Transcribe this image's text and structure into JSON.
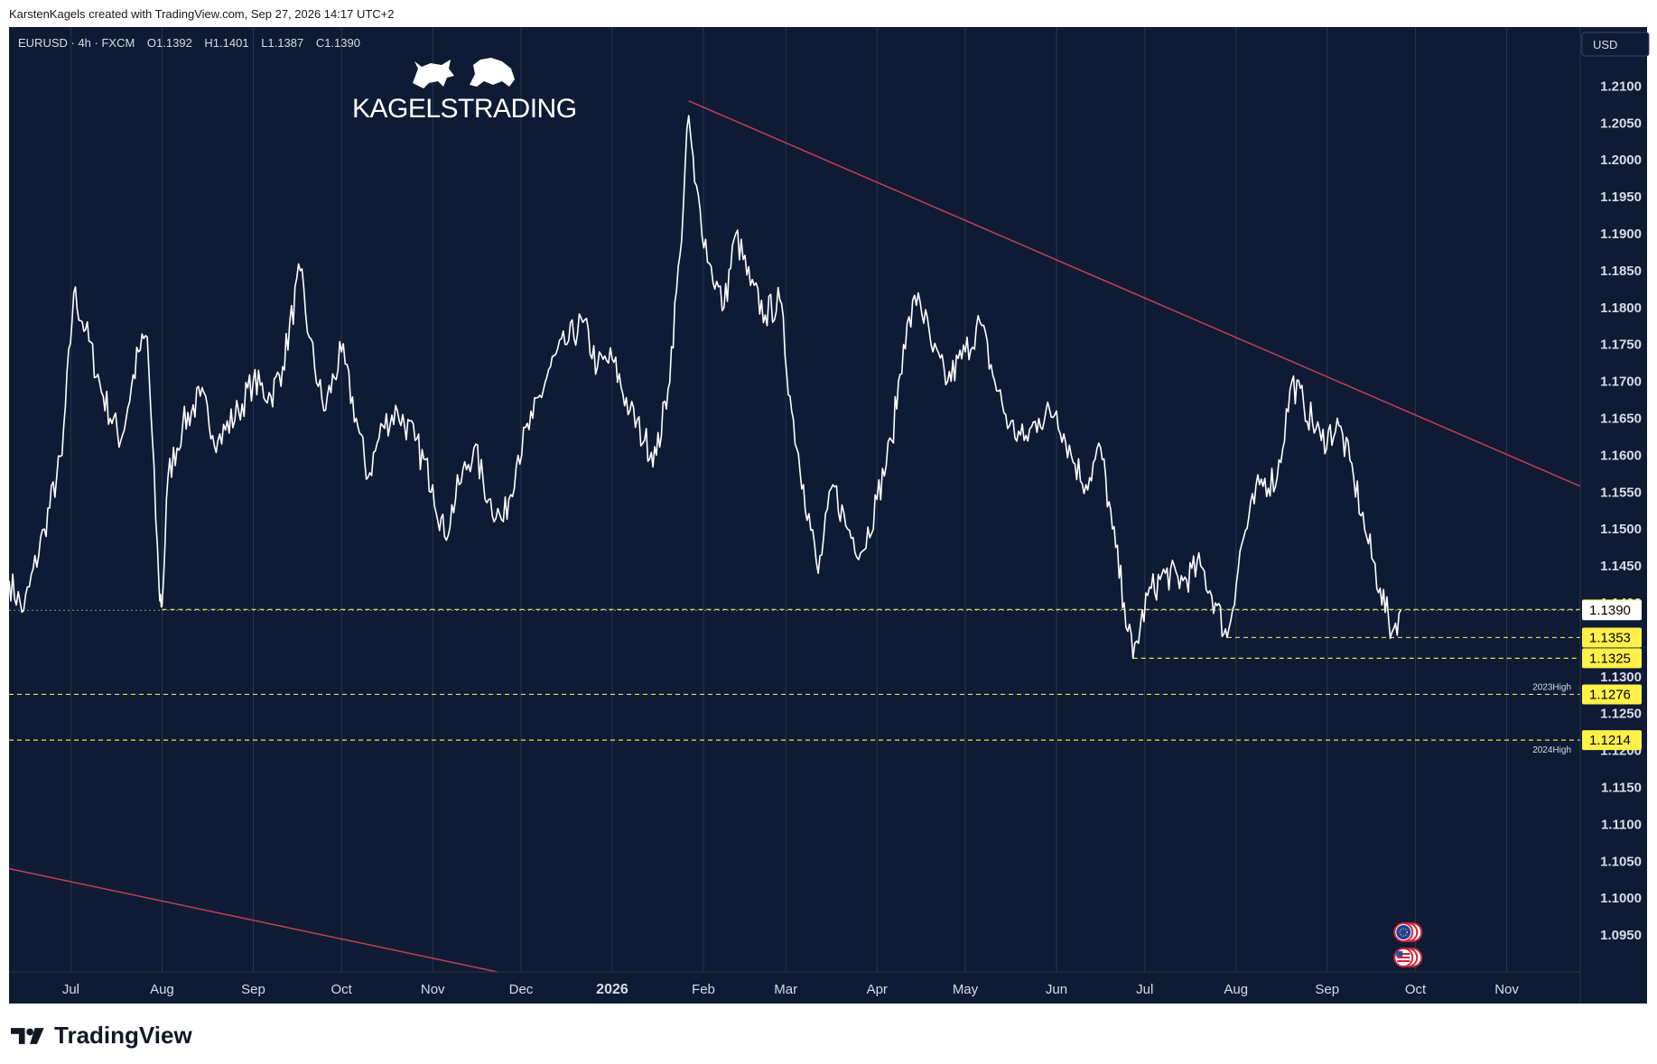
{
  "header": {
    "credit": "KarstenKagels created with TradingView.com, Sep 27, 2026 14:17 UTC+2"
  },
  "legend": {
    "symbol": "EURUSD · 4h · FXCM",
    "open": "O1.1392",
    "high": "H1.1401",
    "low": "L1.1387",
    "close": "C1.1390"
  },
  "brand": {
    "name": "KAGELSTRADING"
  },
  "currency_button": "USD",
  "footer": {
    "logo_text": "TradingView"
  },
  "colors": {
    "background": "#0f1b34",
    "grid": "#2a344d",
    "candles": "#ffffff",
    "trendline": "#c2404f",
    "level_line": "#e8e04a",
    "label_bg": "#fff04a",
    "label_text": "#000000",
    "axis_text": "#d6dce8"
  },
  "chart_data": {
    "type": "line",
    "symbol": "EURUSD",
    "interval": "4h",
    "ylim": [
      1.09,
      1.218
    ],
    "y_ticks": [
      "1.0950",
      "1.1000",
      "1.1050",
      "1.1100",
      "1.1150",
      "1.1200",
      "1.1250",
      "1.1300",
      "1.1350",
      "1.1400",
      "1.1450",
      "1.1500",
      "1.1550",
      "1.1600",
      "1.1650",
      "1.1700",
      "1.1750",
      "1.1800",
      "1.1850",
      "1.1900",
      "1.1950",
      "1.2000",
      "1.2050",
      "1.2100"
    ],
    "x_months": [
      "Jul",
      "Aug",
      "Sep",
      "Oct",
      "Nov",
      "Dec",
      "2026",
      "Feb",
      "Mar",
      "Apr",
      "May",
      "Jun",
      "Jul",
      "Aug",
      "Sep",
      "Oct",
      "Nov"
    ],
    "x_range": [
      "2025-06-10",
      "2026-11-26"
    ],
    "x_tick_dates": [
      "2025-07-01",
      "2025-08-01",
      "2025-09-01",
      "2025-10-01",
      "2025-11-01",
      "2025-12-01",
      "2026-01-01",
      "2026-02-01",
      "2026-03-01",
      "2026-04-01",
      "2026-05-01",
      "2026-06-01",
      "2026-07-01",
      "2026-08-01",
      "2026-09-01",
      "2026-10-01",
      "2026-11-01"
    ],
    "price_path": [
      [
        "2025-06-10",
        1.143
      ],
      [
        "2025-06-15",
        1.139
      ],
      [
        "2025-06-22",
        1.15
      ],
      [
        "2025-06-28",
        1.16
      ],
      [
        "2025-07-02",
        1.182
      ],
      [
        "2025-07-06",
        1.177
      ],
      [
        "2025-07-12",
        1.168
      ],
      [
        "2025-07-18",
        1.162
      ],
      [
        "2025-07-24",
        1.174
      ],
      [
        "2025-07-27",
        1.176
      ],
      [
        "2025-07-31",
        1.142
      ],
      [
        "2025-08-01",
        1.1395
      ],
      [
        "2025-08-03",
        1.157
      ],
      [
        "2025-08-08",
        1.164
      ],
      [
        "2025-08-14",
        1.168
      ],
      [
        "2025-08-20",
        1.162
      ],
      [
        "2025-08-27",
        1.166
      ],
      [
        "2025-09-01",
        1.17
      ],
      [
        "2025-09-07",
        1.168
      ],
      [
        "2025-09-11",
        1.172
      ],
      [
        "2025-09-17",
        1.185
      ],
      [
        "2025-09-20",
        1.176
      ],
      [
        "2025-09-25",
        1.166
      ],
      [
        "2025-10-01",
        1.174
      ],
      [
        "2025-10-06",
        1.165
      ],
      [
        "2025-10-10",
        1.157
      ],
      [
        "2025-10-15",
        1.164
      ],
      [
        "2025-10-20",
        1.166
      ],
      [
        "2025-10-26",
        1.162
      ],
      [
        "2025-11-01",
        1.156
      ],
      [
        "2025-11-05",
        1.149
      ],
      [
        "2025-11-10",
        1.156
      ],
      [
        "2025-11-15",
        1.161
      ],
      [
        "2025-11-20",
        1.154
      ],
      [
        "2025-11-25",
        1.151
      ],
      [
        "2025-11-30",
        1.16
      ],
      [
        "2025-12-05",
        1.165
      ],
      [
        "2025-12-11",
        1.172
      ],
      [
        "2025-12-16",
        1.175
      ],
      [
        "2025-12-22",
        1.178
      ],
      [
        "2025-12-27",
        1.172
      ],
      [
        "2026-01-01",
        1.173
      ],
      [
        "2026-01-07",
        1.166
      ],
      [
        "2026-01-12",
        1.162
      ],
      [
        "2026-01-16",
        1.16
      ],
      [
        "2026-01-20",
        1.169
      ],
      [
        "2026-01-24",
        1.187
      ],
      [
        "2026-01-27",
        1.206
      ],
      [
        "2026-01-29",
        1.197
      ],
      [
        "2026-02-03",
        1.186
      ],
      [
        "2026-02-08",
        1.18
      ],
      [
        "2026-02-12",
        1.19
      ],
      [
        "2026-02-17",
        1.183
      ],
      [
        "2026-02-22",
        1.179
      ],
      [
        "2026-02-27",
        1.181
      ],
      [
        "2026-03-03",
        1.166
      ],
      [
        "2026-03-07",
        1.156
      ],
      [
        "2026-03-12",
        1.144
      ],
      [
        "2026-03-17",
        1.156
      ],
      [
        "2026-03-22",
        1.15
      ],
      [
        "2026-03-27",
        1.147
      ],
      [
        "2026-04-01",
        1.154
      ],
      [
        "2026-04-06",
        1.162
      ],
      [
        "2026-04-10",
        1.175
      ],
      [
        "2026-04-15",
        1.182
      ],
      [
        "2026-04-20",
        1.174
      ],
      [
        "2026-04-25",
        1.17
      ],
      [
        "2026-05-01",
        1.174
      ],
      [
        "2026-05-06",
        1.178
      ],
      [
        "2026-05-11",
        1.17
      ],
      [
        "2026-05-16",
        1.164
      ],
      [
        "2026-05-21",
        1.162
      ],
      [
        "2026-05-26",
        1.165
      ],
      [
        "2026-06-01",
        1.166
      ],
      [
        "2026-06-06",
        1.16
      ],
      [
        "2026-06-11",
        1.156
      ],
      [
        "2026-06-16",
        1.161
      ],
      [
        "2026-06-20",
        1.15
      ],
      [
        "2026-06-24",
        1.14
      ],
      [
        "2026-06-27",
        1.1325
      ],
      [
        "2026-07-02",
        1.141
      ],
      [
        "2026-07-08",
        1.144
      ],
      [
        "2026-07-14",
        1.143
      ],
      [
        "2026-07-20",
        1.145
      ],
      [
        "2026-07-25",
        1.14
      ],
      [
        "2026-07-29",
        1.1353
      ],
      [
        "2026-08-03",
        1.148
      ],
      [
        "2026-08-09",
        1.156
      ],
      [
        "2026-08-15",
        1.157
      ],
      [
        "2026-08-20",
        1.17
      ],
      [
        "2026-08-24",
        1.167
      ],
      [
        "2026-08-30",
        1.162
      ],
      [
        "2026-09-05",
        1.164
      ],
      [
        "2026-09-10",
        1.157
      ],
      [
        "2026-09-15",
        1.148
      ],
      [
        "2026-09-19",
        1.142
      ],
      [
        "2026-09-23",
        1.136
      ],
      [
        "2026-09-26",
        1.139
      ]
    ],
    "trendlines": [
      {
        "from": [
          "2026-01-27",
          1.208
        ],
        "to": [
          "2026-11-26",
          1.1558
        ]
      },
      {
        "from": [
          "2025-06-10",
          1.104
        ],
        "to": [
          "2025-11-23",
          1.09
        ]
      }
    ],
    "levels": [
      {
        "price": 1.1391,
        "label": "1.1391",
        "from": "2025-08-01",
        "style": "yellow"
      },
      {
        "price": 1.139,
        "label": "1.1390",
        "from": null,
        "style": "current"
      },
      {
        "price": 1.1353,
        "label": "1.1353",
        "from": "2026-07-29",
        "style": "yellow"
      },
      {
        "price": 1.1325,
        "label": "1.1325",
        "from": "2026-06-27",
        "style": "yellow"
      },
      {
        "price": 1.1276,
        "label": "1.1276",
        "from": "2025-06-10",
        "style": "yellow",
        "note": "2023High"
      },
      {
        "price": 1.1214,
        "label": "1.1214",
        "from": "2025-06-10",
        "style": "yellow",
        "note": "2024High"
      }
    ],
    "events": [
      {
        "date": "2026-09-30",
        "type": "eu-flag"
      },
      {
        "date": "2026-09-30",
        "type": "us-flag"
      }
    ]
  }
}
